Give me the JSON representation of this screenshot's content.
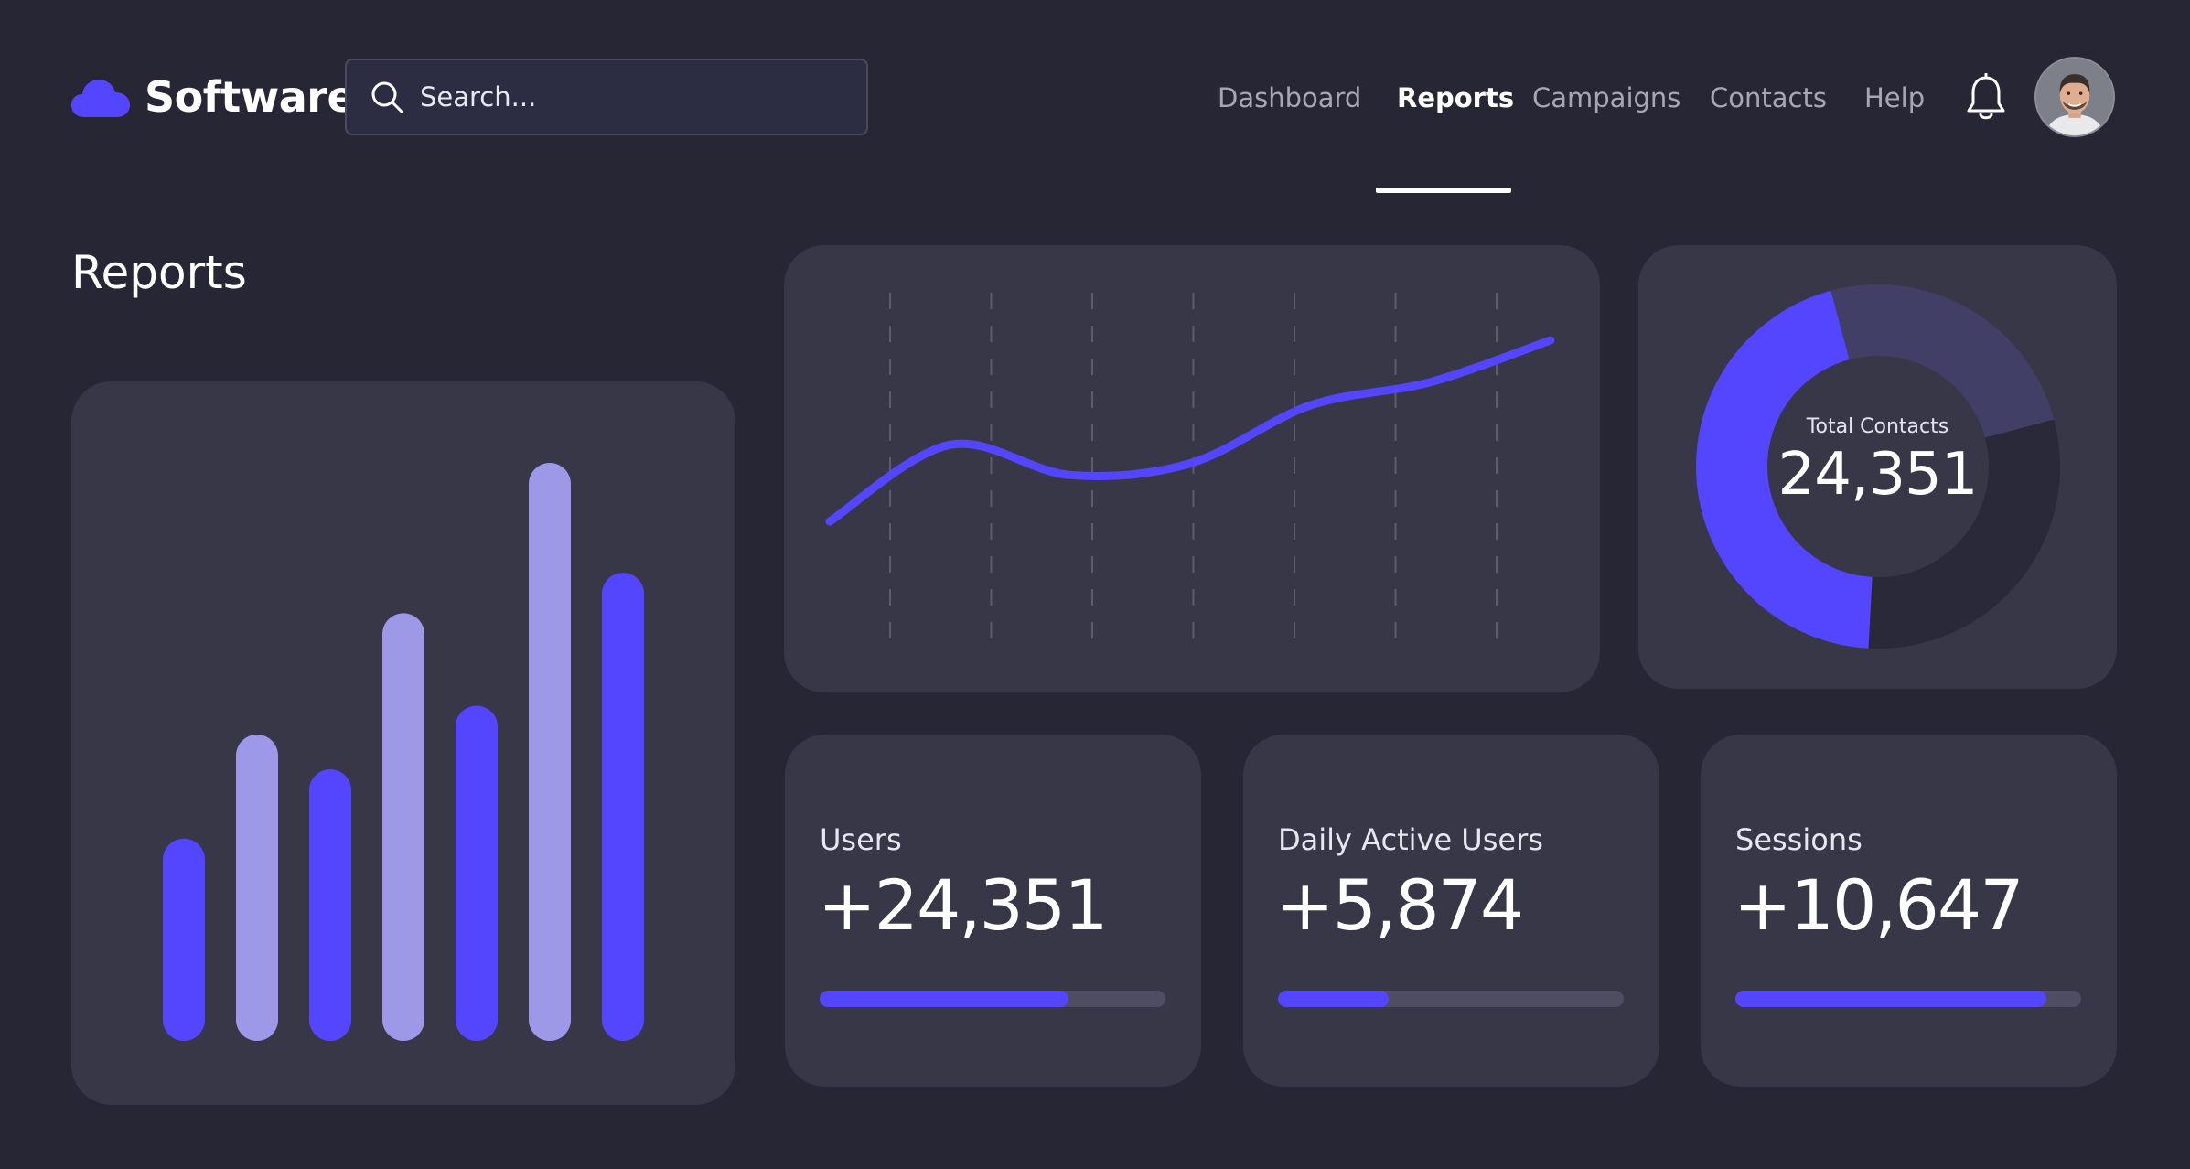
{
  "header": {
    "brand": "Software",
    "search": {
      "placeholder": "Search..."
    },
    "nav": [
      {
        "label": "Dashboard",
        "active": false
      },
      {
        "label": "Reports",
        "active": true
      },
      {
        "label": "Campaigns",
        "active": false
      },
      {
        "label": "Contacts",
        "active": false
      },
      {
        "label": "Help",
        "active": false
      }
    ],
    "icons": {
      "logo": "cloud-icon",
      "search": "search-icon",
      "notifications": "bell-icon",
      "profile": "avatar"
    }
  },
  "page": {
    "title": "Reports"
  },
  "colors": {
    "background": "#272635",
    "card": "#383748",
    "accent": "#5446ff",
    "accent_light": "#9e98e8",
    "donut_dark": "#2a2939",
    "donut_mid": "#413f66",
    "track": "#4e4d61"
  },
  "chart_data": [
    {
      "type": "bar",
      "values": [
        0.35,
        0.53,
        0.47,
        0.74,
        0.58,
        1.0,
        0.81
      ],
      "bar_colors": [
        "#5446ff",
        "#9e98e8",
        "#5446ff",
        "#9e98e8",
        "#5446ff",
        "#9e98e8",
        "#5446ff"
      ]
    },
    {
      "type": "line",
      "points": [
        [
          0,
          0.22
        ],
        [
          1,
          0.55
        ],
        [
          2,
          0.42
        ],
        [
          3,
          0.47
        ],
        [
          4,
          0.72
        ],
        [
          5,
          0.82
        ],
        [
          6,
          1.0
        ]
      ],
      "grid": "vertical dashed"
    },
    {
      "type": "pie",
      "variant": "donut",
      "center_label": "Total Contacts",
      "center_value": "24,351",
      "slices": [
        {
          "value": 0.45,
          "color": "#5446ff"
        },
        {
          "value": 0.25,
          "color": "#413f66"
        },
        {
          "value": 0.3,
          "color": "#2a2939"
        }
      ]
    }
  ],
  "stats": [
    {
      "label": "Users",
      "value": "+24,351",
      "progress": 0.72
    },
    {
      "label": "Daily Active Users",
      "value": "+5,874",
      "progress": 0.32
    },
    {
      "label": "Sessions",
      "value": "+10,647",
      "progress": 0.9
    }
  ]
}
